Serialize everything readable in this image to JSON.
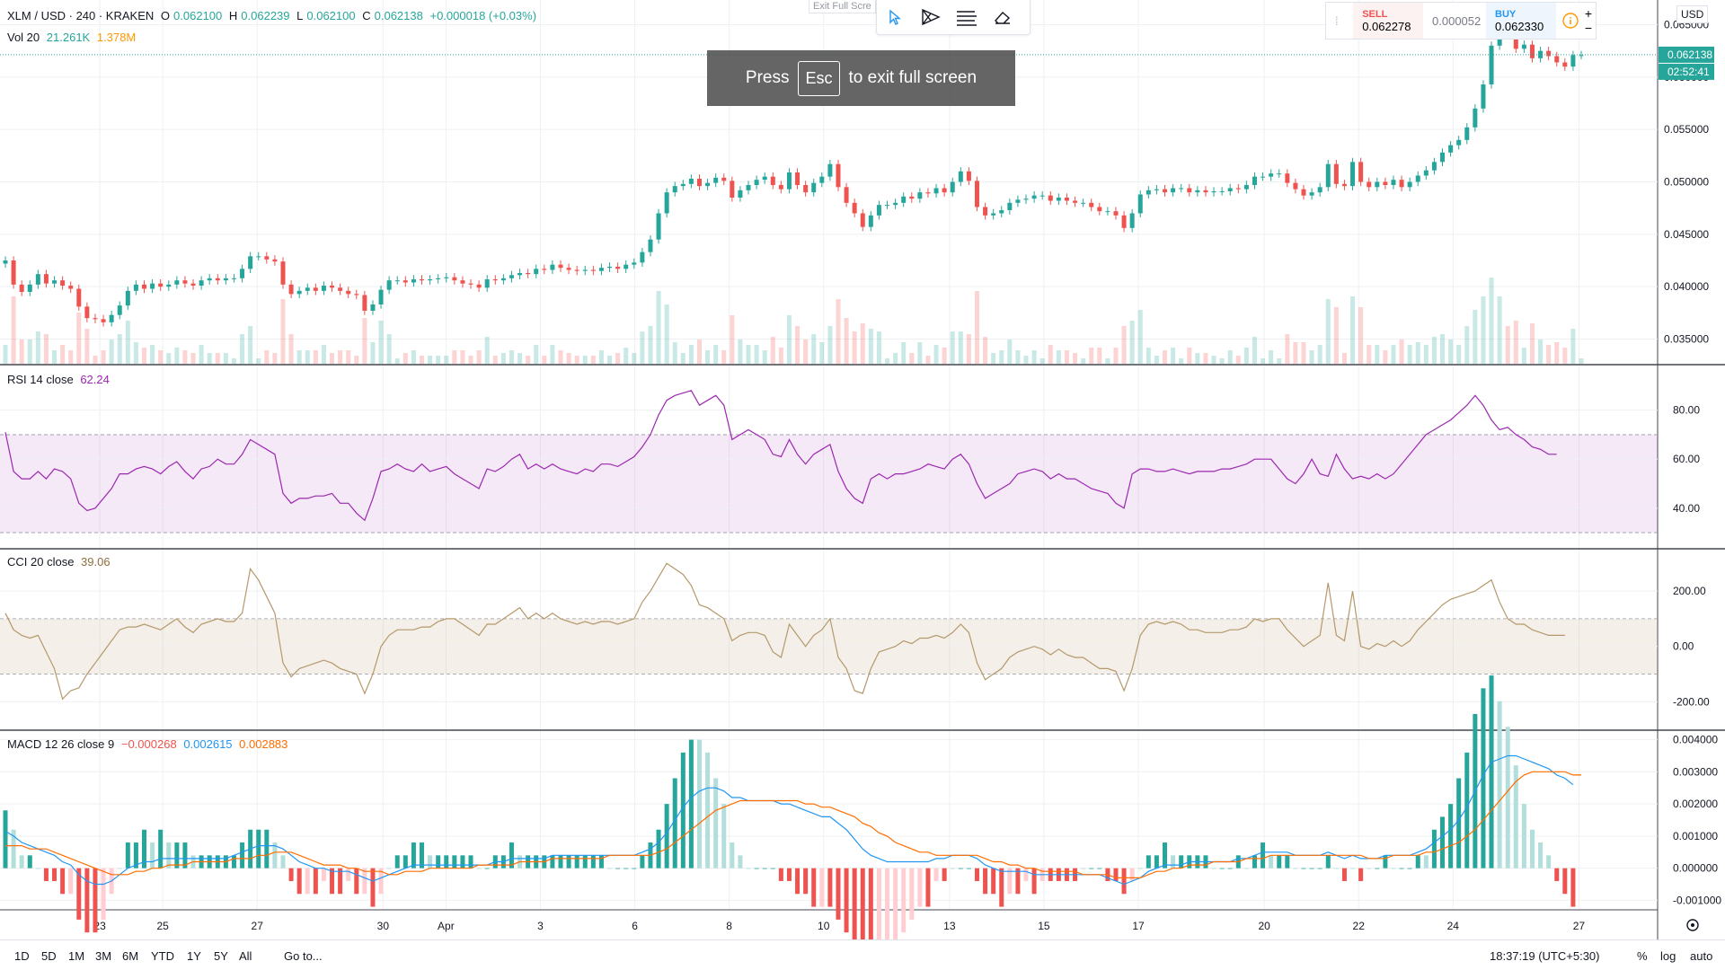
{
  "legend": {
    "symbol": "XLM / USD · 240 · KRAKEN",
    "o_label": "O",
    "o": "0.062100",
    "h_label": "H",
    "h": "0.062239",
    "l_label": "L",
    "l": "0.062100",
    "c_label": "C",
    "c": "0.062138",
    "change": "+0.000018 (+0.03%)",
    "vol_label": "Vol 20",
    "vol1": "21.261K",
    "vol2": "1.378M"
  },
  "indicators": {
    "rsi_label": "RSI 14 close",
    "rsi_value": "62.24",
    "cci_label": "CCI 20 close",
    "cci_value": "39.06",
    "macd_label": "MACD 12 26 close 9",
    "macd_hist": "−0.000268",
    "macd_line": "0.002615",
    "macd_signal": "0.002883"
  },
  "toolbar": {
    "exit_hint": "Exit Full Scre"
  },
  "overlay": {
    "press": "Press",
    "key": "Esc",
    "rest": "to exit full screen"
  },
  "trade": {
    "sell_label": "SELL",
    "sell": "0.062278",
    "spread": "0.000052",
    "buy_label": "BUY",
    "buy": "0.062330",
    "plus": "+",
    "minus": "−"
  },
  "price_axis": {
    "currency": "USD",
    "last_price": "0.062138",
    "countdown": "02:52:41"
  },
  "bottom": {
    "ranges": [
      "1D",
      "5D",
      "1M",
      "3M",
      "6M",
      "YTD",
      "1Y",
      "5Y",
      "All"
    ],
    "goto": "Go to...",
    "clock": "18:37:19 (UTC+5:30)",
    "percent": "%",
    "log": "log",
    "auto": "auto"
  },
  "colors": {
    "up": "#26a69a",
    "down": "#ef5350",
    "rsi": "#9c27b0",
    "cci": "#b5986b",
    "macd": "#2196f3",
    "signal": "#ff6d00",
    "grid": "#eef0f3"
  },
  "chart_data": [
    {
      "type": "candlestick",
      "title": "XLM / USD, 240, KRAKEN",
      "x_ticks": [
        "23",
        "25",
        "27",
        "30",
        "Apr",
        "3",
        "6",
        "8",
        "10",
        "13",
        "15",
        "17",
        "20",
        "22",
        "24",
        "27"
      ],
      "y_ticks": [
        "0.035000",
        "0.040000",
        "0.045000",
        "0.050000",
        "0.055000",
        "0.060000",
        "0.065000"
      ],
      "ylim": [
        0.0335,
        0.0665
      ],
      "close": [
        0.0425,
        0.0402,
        0.0395,
        0.0402,
        0.0412,
        0.0403,
        0.0406,
        0.0401,
        0.0398,
        0.0381,
        0.037,
        0.0369,
        0.0366,
        0.0373,
        0.0382,
        0.0396,
        0.0402,
        0.0398,
        0.0403,
        0.04,
        0.0402,
        0.0406,
        0.0403,
        0.0401,
        0.0406,
        0.0408,
        0.0406,
        0.0408,
        0.0408,
        0.0417,
        0.0429,
        0.0429,
        0.0426,
        0.0424,
        0.0402,
        0.0393,
        0.0396,
        0.0399,
        0.0396,
        0.0401,
        0.0399,
        0.0396,
        0.0393,
        0.0392,
        0.0377,
        0.0383,
        0.0397,
        0.0406,
        0.0406,
        0.0404,
        0.0407,
        0.0406,
        0.0407,
        0.0408,
        0.0409,
        0.0406,
        0.0403,
        0.0402,
        0.0399,
        0.0407,
        0.0406,
        0.0408,
        0.0411,
        0.0413,
        0.0412,
        0.0417,
        0.0416,
        0.0421,
        0.0418,
        0.0416,
        0.0415,
        0.0416,
        0.0415,
        0.0418,
        0.0419,
        0.0417,
        0.0421,
        0.0423,
        0.0433,
        0.0445,
        0.047,
        0.049,
        0.0496,
        0.0498,
        0.0503,
        0.0496,
        0.0499,
        0.0504,
        0.0501,
        0.0485,
        0.0492,
        0.0497,
        0.0502,
        0.0505,
        0.0497,
        0.0493,
        0.0509,
        0.0497,
        0.049,
        0.0499,
        0.0505,
        0.0517,
        0.0495,
        0.048,
        0.047,
        0.0457,
        0.0468,
        0.0478,
        0.0478,
        0.048,
        0.0486,
        0.0484,
        0.049,
        0.0489,
        0.0494,
        0.049,
        0.05,
        0.051,
        0.0501,
        0.0476,
        0.0468,
        0.047,
        0.0473,
        0.048,
        0.0483,
        0.0484,
        0.0487,
        0.0487,
        0.0482,
        0.0485,
        0.0482,
        0.048,
        0.048,
        0.0476,
        0.0472,
        0.0472,
        0.0468,
        0.0456,
        0.047,
        0.0488,
        0.0492,
        0.0493,
        0.049,
        0.0494,
        0.0494,
        0.049,
        0.0492,
        0.049,
        0.0491,
        0.0491,
        0.0494,
        0.0493,
        0.0497,
        0.0505,
        0.0505,
        0.0508,
        0.0508,
        0.0499,
        0.0493,
        0.0487,
        0.049,
        0.0495,
        0.0517,
        0.0498,
        0.0496,
        0.0519,
        0.05,
        0.0495,
        0.05,
        0.0497,
        0.0502,
        0.0495,
        0.05,
        0.0506,
        0.0511,
        0.0519,
        0.0528,
        0.0535,
        0.054,
        0.0552,
        0.057,
        0.0593,
        0.063,
        0.0653,
        0.0641,
        0.0627,
        0.0631,
        0.0618,
        0.0625,
        0.062,
        0.0614,
        0.061,
        0.0621,
        0.0621
      ],
      "volume_ylim": [
        0,
        450000
      ]
    },
    {
      "type": "line",
      "title": "RSI 14 close",
      "y_ticks": [
        "40.00",
        "60.00",
        "80.00"
      ],
      "ylim": [
        26,
        96
      ],
      "band": [
        30,
        70
      ],
      "values": [
        71,
        55,
        52,
        52,
        55,
        52,
        56,
        55,
        52,
        42,
        39,
        40,
        44,
        48,
        54,
        54,
        56,
        57,
        56,
        54,
        57,
        59,
        55,
        52,
        56,
        57,
        60,
        58,
        58,
        62,
        68,
        66,
        64,
        62,
        46,
        42,
        44,
        44,
        45,
        45,
        46,
        42,
        42,
        38,
        35,
        44,
        55,
        56,
        58,
        56,
        55,
        58,
        55,
        56,
        57,
        54,
        52,
        50,
        48,
        56,
        55,
        57,
        60,
        62,
        56,
        58,
        56,
        58,
        56,
        55,
        54,
        56,
        55,
        58,
        58,
        57,
        59,
        61,
        65,
        70,
        78,
        84,
        86,
        87,
        88,
        82,
        84,
        86,
        82,
        68,
        70,
        72,
        70,
        68,
        62,
        61,
        68,
        62,
        58,
        62,
        64,
        66,
        55,
        48,
        44,
        42,
        52,
        54,
        52,
        54,
        54,
        55,
        56,
        58,
        57,
        56,
        60,
        62,
        58,
        50,
        44,
        46,
        48,
        50,
        54,
        55,
        56,
        55,
        52,
        54,
        52,
        52,
        50,
        48,
        47,
        46,
        42,
        40,
        54,
        56,
        56,
        55,
        55,
        56,
        55,
        54,
        55,
        55,
        55,
        56,
        56,
        57,
        58,
        60,
        60,
        60,
        56,
        52,
        50,
        54,
        60,
        54,
        53,
        62,
        56,
        52,
        53,
        52,
        54,
        52,
        54,
        58,
        62,
        66,
        70,
        72,
        74,
        76,
        79,
        82,
        86,
        82,
        76,
        72,
        73,
        70,
        68,
        65,
        64,
        62,
        62
      ]
    },
    {
      "type": "line",
      "title": "CCI 20 close",
      "y_ticks": [
        "-200.00",
        "0.00",
        "200.00"
      ],
      "ylim": [
        -280,
        330
      ],
      "band": [
        -100,
        100
      ],
      "values": [
        120,
        60,
        40,
        30,
        40,
        -20,
        -80,
        -190,
        -160,
        -150,
        -100,
        -60,
        -20,
        20,
        60,
        70,
        70,
        80,
        70,
        60,
        80,
        100,
        70,
        50,
        80,
        90,
        100,
        90,
        90,
        120,
        280,
        240,
        180,
        120,
        -60,
        -110,
        -80,
        -70,
        -60,
        -50,
        -60,
        -80,
        -90,
        -100,
        -170,
        -100,
        0,
        40,
        60,
        60,
        60,
        70,
        70,
        90,
        100,
        100,
        80,
        60,
        40,
        80,
        80,
        100,
        120,
        140,
        100,
        120,
        100,
        120,
        100,
        90,
        80,
        90,
        80,
        90,
        90,
        80,
        90,
        100,
        160,
        200,
        250,
        300,
        280,
        260,
        220,
        150,
        140,
        120,
        100,
        20,
        40,
        50,
        50,
        40,
        -20,
        -40,
        80,
        40,
        0,
        40,
        60,
        100,
        -40,
        -80,
        -160,
        -170,
        -80,
        -20,
        -10,
        0,
        20,
        10,
        30,
        30,
        40,
        30,
        50,
        80,
        50,
        -60,
        -120,
        -100,
        -80,
        -40,
        -20,
        -10,
        0,
        -10,
        -30,
        -10,
        -30,
        -40,
        -40,
        -60,
        -80,
        -80,
        -90,
        -160,
        -80,
        40,
        80,
        90,
        80,
        90,
        80,
        60,
        60,
        50,
        50,
        50,
        60,
        60,
        70,
        100,
        90,
        100,
        100,
        60,
        30,
        0,
        20,
        40,
        230,
        40,
        20,
        200,
        0,
        -10,
        10,
        0,
        20,
        0,
        20,
        60,
        90,
        120,
        150,
        170,
        180,
        190,
        200,
        220,
        240,
        160,
        100,
        80,
        80,
        60,
        50,
        40,
        40,
        40
      ]
    },
    {
      "type": "line",
      "title": "MACD 12 26 close 9",
      "y_ticks": [
        "-0.001000",
        "0.000000",
        "0.001000",
        "0.002000",
        "0.003000",
        "0.004000"
      ],
      "ylim": [
        -0.0011,
        0.0041
      ],
      "series": [
        {
          "name": "MACD",
          "values": [
            0.00115,
            0.001,
            0.0008,
            0.0007,
            0.0006,
            0.0005,
            0.0004,
            0.0002,
            0.0001,
            -0.0002,
            -0.0004,
            -0.0005,
            -0.0005,
            -0.0004,
            -0.0002,
            0.0,
            0.0001,
            0.0002,
            0.0002,
            0.0003,
            0.0003,
            0.0003,
            0.0003,
            0.0003,
            0.0003,
            0.0003,
            0.0003,
            0.0003,
            0.0004,
            0.0005,
            0.0006,
            0.0007,
            0.0007,
            0.0007,
            0.0006,
            0.0004,
            0.0002,
            0.0001,
            0.0,
            0.0,
            -0.0001,
            -0.0001,
            -0.0001,
            -0.0002,
            -0.0003,
            -0.0004,
            -0.0003,
            -0.0002,
            -0.0001,
            0.0,
            0.0001,
            0.0001,
            0.0001,
            0.0001,
            0.0001,
            0.0001,
            0.0001,
            0.0001,
            0.0001,
            0.0001,
            0.0002,
            0.0002,
            0.0003,
            0.0003,
            0.0003,
            0.0003,
            0.0003,
            0.0004,
            0.0004,
            0.0004,
            0.0004,
            0.0004,
            0.0004,
            0.0004,
            0.0004,
            0.0004,
            0.0004,
            0.0004,
            0.0005,
            0.0006,
            0.0008,
            0.0011,
            0.0015,
            0.0019,
            0.0022,
            0.0024,
            0.0025,
            0.0025,
            0.0024,
            0.0022,
            0.0022,
            0.0021,
            0.0021,
            0.0021,
            0.0021,
            0.002,
            0.002,
            0.0019,
            0.0018,
            0.0017,
            0.0016,
            0.0016,
            0.0014,
            0.0012,
            0.0009,
            0.0006,
            0.0004,
            0.0003,
            0.0002,
            0.0002,
            0.0002,
            0.0002,
            0.0002,
            0.0002,
            0.0003,
            0.0003,
            0.0004,
            0.0004,
            0.0004,
            0.0003,
            0.0001,
            0.0,
            -0.0001,
            -0.0001,
            -0.0001,
            -0.0001,
            -0.0002,
            -0.0002,
            -0.0002,
            -0.0002,
            -0.0002,
            -0.0002,
            -0.0002,
            -0.0002,
            -0.0002,
            -0.0003,
            -0.0004,
            -0.0005,
            -0.0004,
            -0.0003,
            -0.0001,
            0.0,
            0.0001,
            0.0001,
            0.0001,
            0.0002,
            0.0002,
            0.0002,
            0.0002,
            0.0002,
            0.0002,
            0.0003,
            0.0003,
            0.0004,
            0.0005,
            0.0005,
            0.0005,
            0.0005,
            0.0004,
            0.0004,
            0.0004,
            0.0004,
            0.0005,
            0.0004,
            0.0003,
            0.0004,
            0.0003,
            0.0003,
            0.0003,
            0.0004,
            0.0004,
            0.0004,
            0.0004,
            0.0005,
            0.0006,
            0.0008,
            0.001,
            0.0012,
            0.0015,
            0.0019,
            0.0024,
            0.0029,
            0.0033,
            0.0034,
            0.0035,
            0.0035,
            0.0034,
            0.0033,
            0.0032,
            0.0031,
            0.0029,
            0.0028,
            0.0026
          ]
        },
        {
          "name": "Signal",
          "values": [
            0.0007,
            0.0007,
            0.0007,
            0.0006,
            0.0006,
            0.0006,
            0.0005,
            0.0004,
            0.0003,
            0.0002,
            0.0001,
            0.0,
            -0.0001,
            -0.0002,
            -0.0002,
            -0.0002,
            -0.0001,
            -0.0001,
            0.0,
            0.0,
            0.0001,
            0.0001,
            0.0001,
            0.0002,
            0.0002,
            0.0002,
            0.0002,
            0.0002,
            0.0003,
            0.0003,
            0.0003,
            0.0004,
            0.0004,
            0.0005,
            0.0005,
            0.0005,
            0.0004,
            0.0003,
            0.0002,
            0.0001,
            0.0001,
            0.0001,
            0.0,
            0.0,
            -0.0001,
            -0.0001,
            -0.0001,
            -0.0002,
            -0.0002,
            -0.0001,
            -0.0001,
            -0.0001,
            0.0,
            0.0,
            0.0,
            0.0,
            0.0,
            0.0,
            0.0001,
            0.0001,
            0.0001,
            0.0001,
            0.0001,
            0.0002,
            0.0002,
            0.0002,
            0.0002,
            0.0003,
            0.0003,
            0.0003,
            0.0003,
            0.0003,
            0.0003,
            0.0003,
            0.0004,
            0.0004,
            0.0004,
            0.0004,
            0.0004,
            0.0004,
            0.0005,
            0.0006,
            0.0008,
            0.001,
            0.0012,
            0.0014,
            0.0016,
            0.0018,
            0.0019,
            0.002,
            0.0021,
            0.0021,
            0.0021,
            0.0021,
            0.0021,
            0.0021,
            0.0021,
            0.0021,
            0.002,
            0.002,
            0.0019,
            0.0019,
            0.0018,
            0.0017,
            0.0016,
            0.0014,
            0.0013,
            0.0011,
            0.001,
            0.0008,
            0.0007,
            0.0006,
            0.0005,
            0.0005,
            0.0004,
            0.0004,
            0.0004,
            0.0004,
            0.0004,
            0.0004,
            0.0003,
            0.0002,
            0.0002,
            0.0001,
            0.0001,
            0.0,
            0.0,
            -0.0001,
            -0.0001,
            -0.0001,
            -0.0001,
            -0.0001,
            -0.0002,
            -0.0002,
            -0.0002,
            -0.0002,
            -0.0003,
            -0.0003,
            -0.0003,
            -0.0003,
            -0.0002,
            -0.0001,
            -0.0001,
            0.0,
            0.0,
            0.0001,
            0.0001,
            0.0001,
            0.0002,
            0.0002,
            0.0002,
            0.0002,
            0.0003,
            0.0003,
            0.0003,
            0.0004,
            0.0004,
            0.0004,
            0.0004,
            0.0004,
            0.0004,
            0.0004,
            0.0004,
            0.0004,
            0.0004,
            0.0004,
            0.0004,
            0.0003,
            0.0003,
            0.0003,
            0.0004,
            0.0004,
            0.0004,
            0.0004,
            0.0005,
            0.0005,
            0.0006,
            0.0007,
            0.0008,
            0.001,
            0.0012,
            0.0015,
            0.0018,
            0.0021,
            0.0024,
            0.0027,
            0.0029,
            0.003,
            0.003,
            0.003,
            0.003,
            0.003,
            0.0029,
            0.0029
          ]
        }
      ]
    }
  ]
}
